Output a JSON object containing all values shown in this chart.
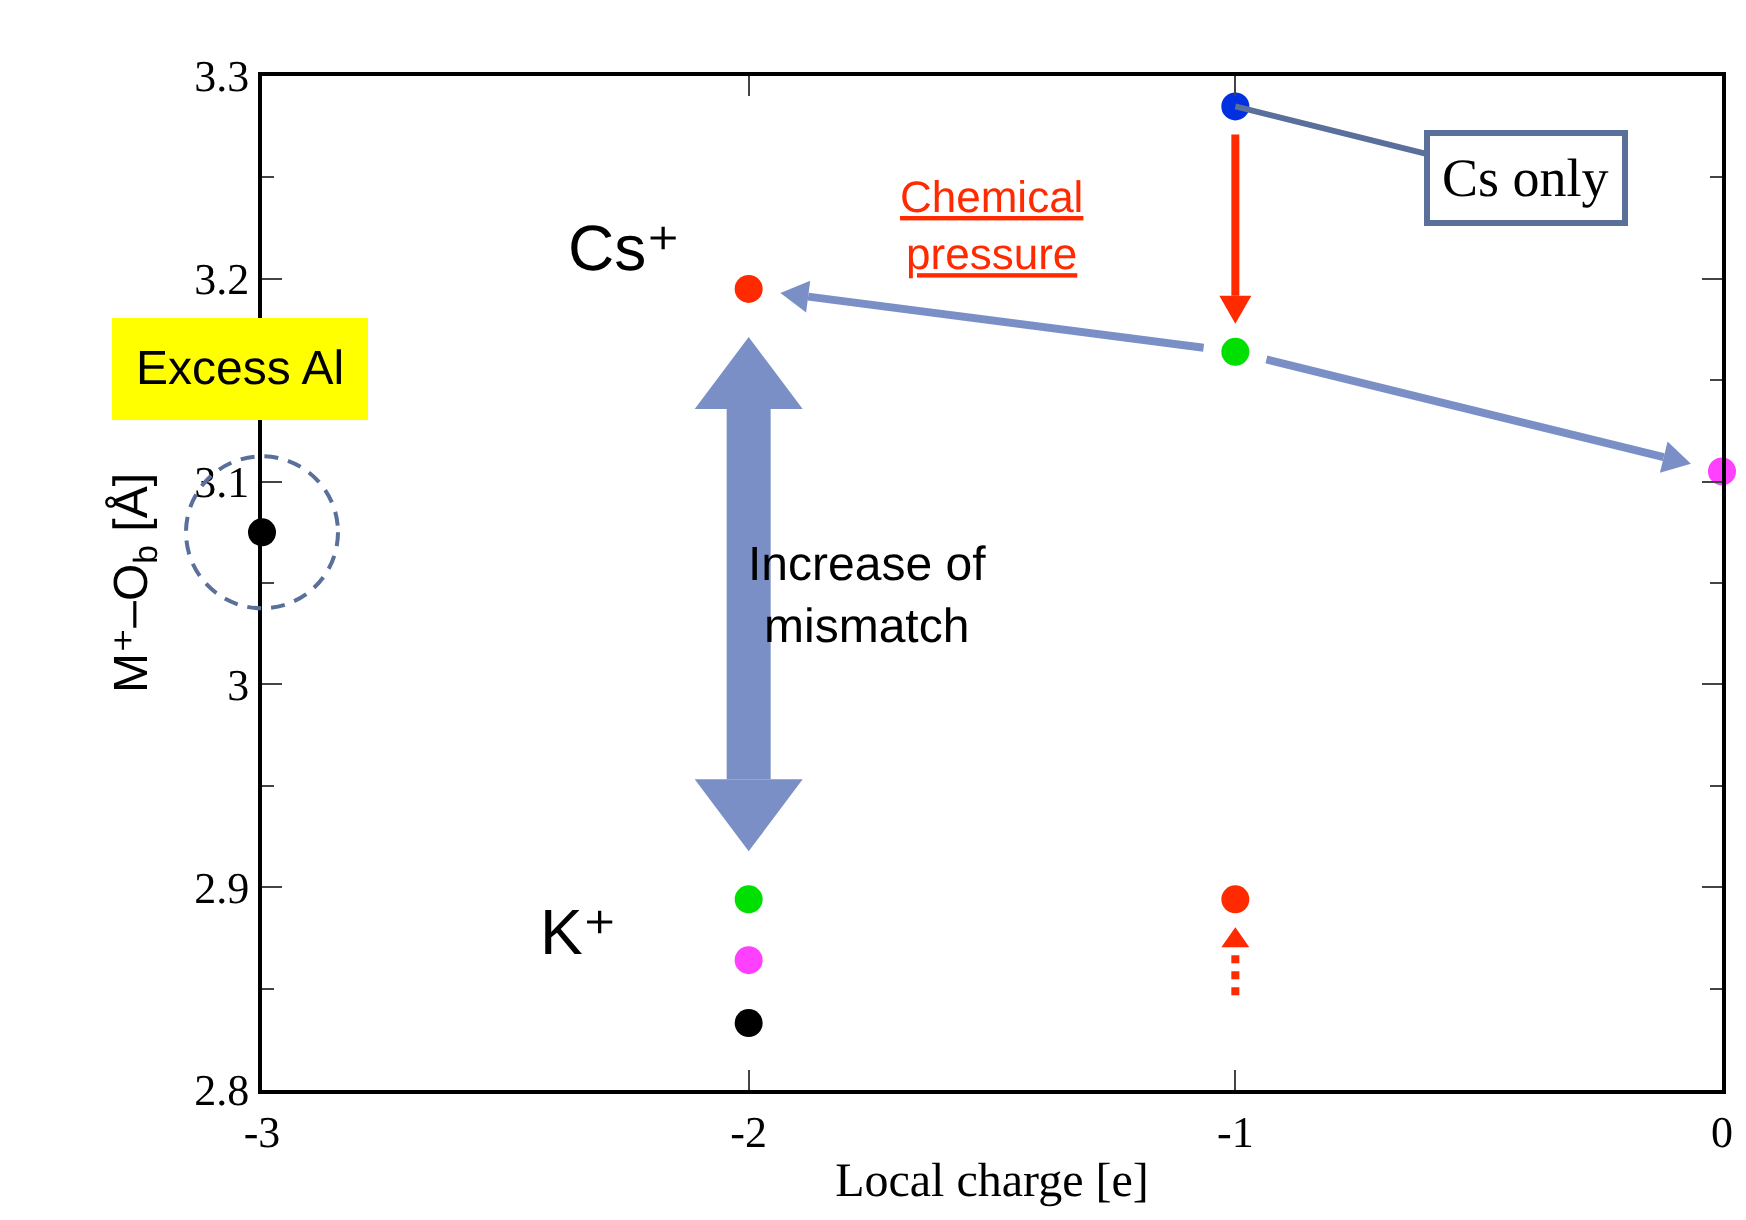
{
  "chart_data": {
    "type": "scatter",
    "xlabel": "Local charge [e]",
    "ylabel": "M⁺–O$_{b}$ [Å]",
    "xlim": [
      -3,
      0
    ],
    "xticks": [
      -3,
      -2,
      -1,
      0
    ],
    "ylim": [
      2.8,
      3.3
    ],
    "yticks": [
      2.8,
      2.9,
      3,
      3.1,
      3.2,
      3.3
    ],
    "marker": "circle",
    "series": [
      {
        "color": "#000000",
        "x": [
          -3,
          -2
        ],
        "values": [
          3.075,
          2.833
        ]
      },
      {
        "color": "#ff2a00",
        "x": [
          -2,
          -1
        ],
        "values": [
          3.195,
          2.894
        ]
      },
      {
        "color": "#00e000",
        "x": [
          -2,
          -1
        ],
        "values": [
          2.894,
          3.164
        ]
      },
      {
        "color": "#ff40ff",
        "x": [
          -2,
          0
        ],
        "values": [
          2.864,
          3.105
        ]
      },
      {
        "color": "#0030e0",
        "x": [
          -1
        ],
        "values": [
          3.285
        ]
      }
    ],
    "annotations": [
      "Cs⁺",
      "K⁺",
      "Chemical\npressure",
      {
        "text": "Cs only",
        "x": -1,
        "y": 3.285
      },
      {
        "text": "Excess Al",
        "x": -3,
        "y": 3.075
      },
      "Increase of\nmismatch"
    ]
  }
}
